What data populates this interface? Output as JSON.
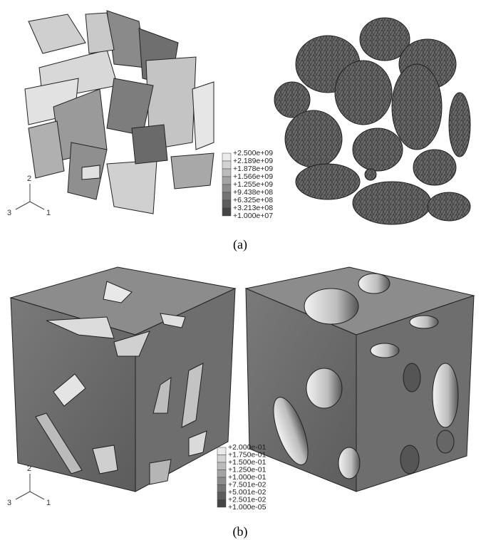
{
  "figure_a": {
    "legend": [
      "+2.500e+09",
      "+2.189e+09",
      "+1.878e+09",
      "+1.566e+09",
      "+1.255e+09",
      "+9.438e+08",
      "+6.325e+08",
      "+3.213e+08",
      "+1.000e+07"
    ],
    "triad": {
      "axis_1": "1",
      "axis_2": "2",
      "axis_3": "3"
    },
    "caption": "(a)"
  },
  "figure_b": {
    "legend": [
      "+2.000e-01",
      "+1.750e-01",
      "+1.500e-01",
      "+1.250e-01",
      "+1.000e-01",
      "+7.501e-02",
      "+5.001e-02",
      "+2.501e-02",
      "+1.000e-05"
    ],
    "triad": {
      "axis_1": "1",
      "axis_2": "2",
      "axis_3": "3"
    },
    "caption": "(b)"
  }
}
